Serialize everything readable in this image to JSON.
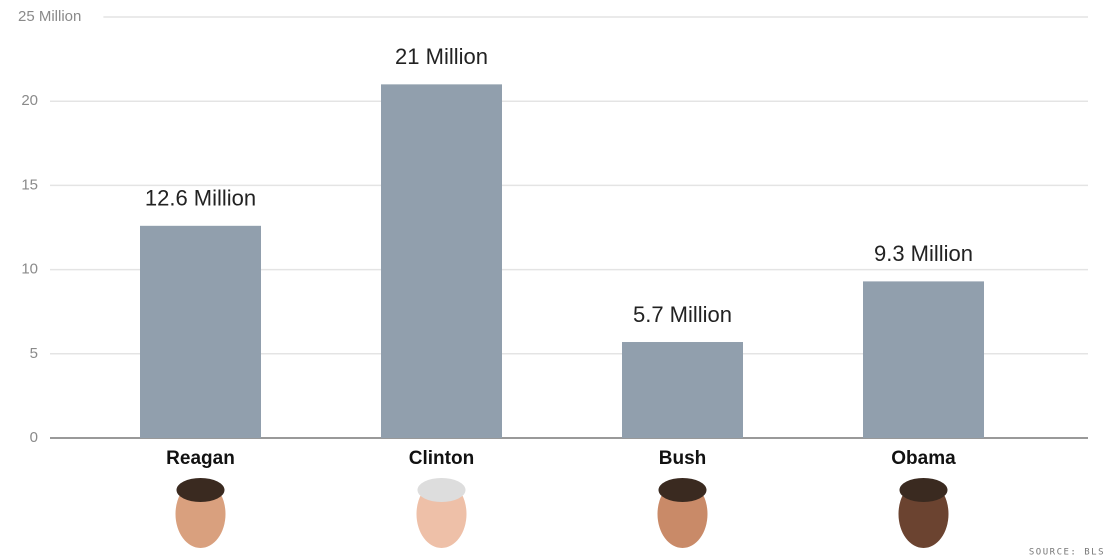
{
  "chart_data": {
    "type": "bar",
    "categories": [
      "Reagan",
      "Clinton",
      "Bush",
      "Obama"
    ],
    "values": [
      12.6,
      21,
      5.7,
      9.3
    ],
    "value_labels": [
      "12.6 Million",
      "21 Million",
      "5.7 Million",
      "9.3 Million"
    ],
    "color": "#919fad",
    "ylim": [
      0,
      25
    ],
    "yticks": [
      0,
      5,
      10,
      15,
      20,
      {
        "value": 25,
        "label": "25 Million"
      }
    ],
    "grid": true,
    "source": "SOURCE: BLS"
  }
}
